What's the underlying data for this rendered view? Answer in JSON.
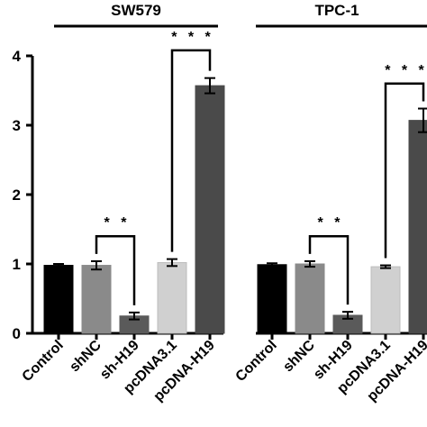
{
  "chart_data": {
    "type": "bar",
    "ylim": [
      0,
      4
    ],
    "yticks": [
      "0",
      "1",
      "2",
      "3",
      "4"
    ],
    "groups": [
      {
        "title": "SW579",
        "categories": [
          "Control",
          "shNC",
          "sh-H19",
          "pcDNA3.1",
          "pcDNA-H19"
        ],
        "values": [
          0.98,
          0.98,
          0.25,
          1.02,
          3.57
        ],
        "errors": [
          0.02,
          0.06,
          0.05,
          0.05,
          0.11
        ],
        "colors": [
          "#000000",
          "#8a8a8a",
          "#5a5a5a",
          "#d0d0d0",
          "#4a4a4a"
        ],
        "brackets": [
          {
            "from": 1,
            "to": 2,
            "level": 1.4,
            "label": "* *"
          },
          {
            "from": 3,
            "to": 4,
            "level": 4.08,
            "label": "* * *"
          }
        ]
      },
      {
        "title": "TPC-1",
        "categories": [
          "Control",
          "shNC",
          "sh-H19",
          "pcDNA3.1",
          "pcDNA-H19"
        ],
        "values": [
          0.99,
          1.0,
          0.26,
          0.96,
          3.07
        ],
        "errors": [
          0.02,
          0.04,
          0.05,
          0.02,
          0.17
        ],
        "colors": [
          "#000000",
          "#8a8a8a",
          "#5a5a5a",
          "#d0d0d0",
          "#4a4a4a"
        ],
        "brackets": [
          {
            "from": 1,
            "to": 2,
            "level": 1.4,
            "label": "* *"
          },
          {
            "from": 3,
            "to": 4,
            "level": 3.6,
            "label": "* * *"
          }
        ]
      }
    ],
    "grid": false
  }
}
